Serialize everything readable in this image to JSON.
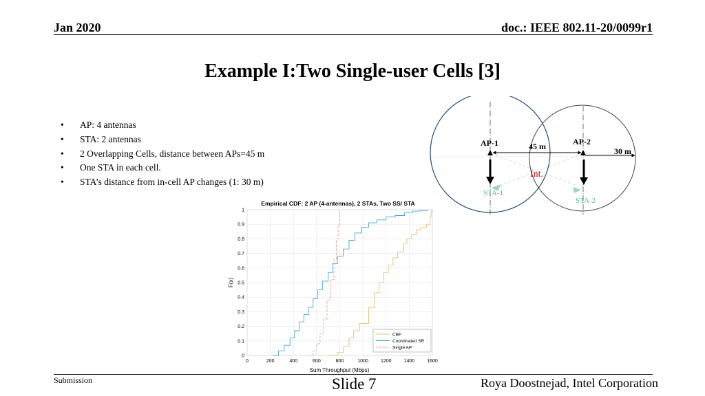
{
  "header": {
    "date": "Jan 2020",
    "doc_id": "doc.: IEEE 802.11-20/0099r1"
  },
  "title": "Example I:Two Single-user Cells [3]",
  "bullets": [
    "AP: 4 antennas",
    "STA: 2 antennas",
    "2 Overlapping Cells, distance between APs=45 m",
    "One STA in each cell.",
    "STA’s distance from in-cell AP changes (1: 30 m)"
  ],
  "diagram": {
    "ap1_label": "AP-1",
    "ap2_label": "AP-2",
    "sta1_label": "STA-1",
    "sta2_label": "STA-2",
    "distance_label": "45 m",
    "radius_label": "30 m",
    "interference_label": "Int.",
    "colors": {
      "sta": "#5fb89a",
      "interference": "#c00000",
      "cell1": "#1f4e79",
      "cell2": "#404040"
    }
  },
  "chart_data": {
    "type": "line",
    "title": "Empirical CDF: 2 AP (4-antennas), 2 STAs, Two SS/ STA",
    "xlabel": "Sum Throughput (Mbps)",
    "ylabel": "F(x)",
    "xlim": [
      0,
      1600
    ],
    "ylim": [
      0,
      1
    ],
    "xticks": [
      0,
      200,
      400,
      600,
      800,
      1000,
      1200,
      1400,
      1600
    ],
    "yticks": [
      0,
      0.1,
      0.2,
      0.3,
      0.4,
      0.5,
      0.6,
      0.7,
      0.8,
      0.9,
      1
    ],
    "grid": true,
    "legend_position": "bottom-right",
    "series": [
      {
        "name": "CBF",
        "color": "#e8c070",
        "dash": false,
        "x": [
          700,
          780,
          830,
          880,
          920,
          970,
          1050,
          1100,
          1140,
          1180,
          1220,
          1260,
          1300,
          1350,
          1380,
          1420,
          1460,
          1500,
          1550,
          1580,
          1590,
          1600
        ],
        "y": [
          0,
          0.02,
          0.06,
          0.12,
          0.17,
          0.22,
          0.33,
          0.43,
          0.5,
          0.57,
          0.62,
          0.67,
          0.71,
          0.77,
          0.8,
          0.83,
          0.86,
          0.88,
          0.9,
          0.95,
          0.99,
          1
        ]
      },
      {
        "name": "Coordinated SR",
        "color": "#4aa3d8",
        "dash": false,
        "x": [
          220,
          270,
          320,
          370,
          410,
          450,
          490,
          530,
          570,
          610,
          650,
          700,
          740,
          780,
          830,
          880,
          930,
          990,
          1050,
          1120,
          1200,
          1280,
          1360,
          1430,
          1500,
          1560
        ],
        "y": [
          0,
          0.03,
          0.07,
          0.12,
          0.17,
          0.23,
          0.28,
          0.33,
          0.39,
          0.45,
          0.51,
          0.57,
          0.63,
          0.68,
          0.73,
          0.79,
          0.84,
          0.88,
          0.91,
          0.93,
          0.95,
          0.96,
          0.98,
          0.99,
          0.995,
          1
        ]
      },
      {
        "name": "Single AP",
        "color": "#e8a09a",
        "dash": true,
        "x": [
          530,
          570,
          600,
          630,
          660,
          690,
          720,
          750,
          770,
          785,
          800
        ],
        "y": [
          0,
          0.03,
          0.08,
          0.15,
          0.25,
          0.38,
          0.52,
          0.66,
          0.8,
          0.9,
          1
        ]
      }
    ]
  },
  "footer": {
    "left": "Submission",
    "center": "Slide 7",
    "right": "Roya Doostnejad, Intel Corporation"
  }
}
